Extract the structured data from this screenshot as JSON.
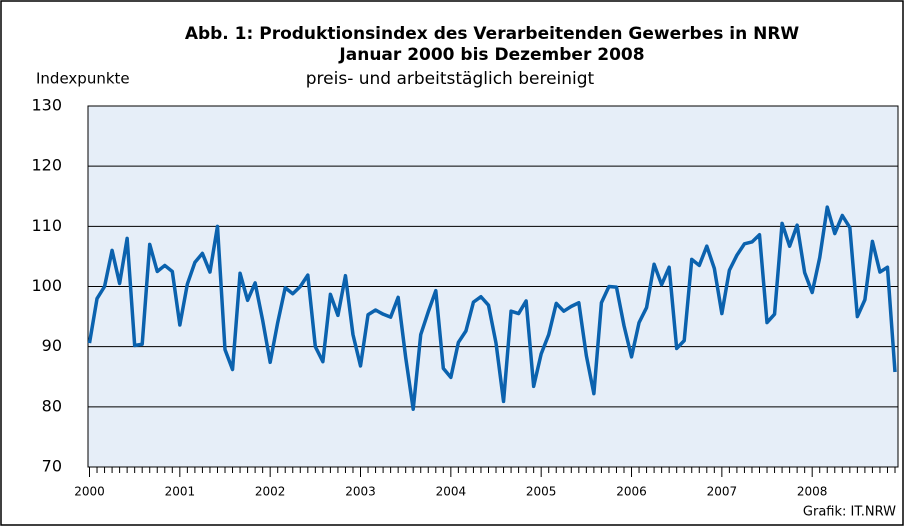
{
  "chart_data": {
    "type": "line",
    "title": [
      "Abb. 1: Produktionsindex des Verarbeitenden Gewerbes in NRW",
      "Januar 2000 bis Dezember 2008"
    ],
    "subtitle": "preis- und arbeitstäglich bereinigt",
    "ylabel": "Indexpunkte",
    "source": "Grafik: IT.NRW",
    "categories": [
      "2000",
      null,
      null,
      null,
      null,
      null,
      null,
      null,
      null,
      null,
      null,
      null,
      "2001",
      null,
      null,
      null,
      null,
      null,
      null,
      null,
      null,
      null,
      null,
      null,
      "2002",
      null,
      null,
      null,
      null,
      null,
      null,
      null,
      null,
      null,
      null,
      null,
      "2003",
      null,
      null,
      null,
      null,
      null,
      null,
      null,
      null,
      null,
      null,
      null,
      "2004",
      null,
      null,
      null,
      null,
      null,
      null,
      null,
      null,
      null,
      null,
      null,
      "2005",
      null,
      null,
      null,
      null,
      null,
      null,
      null,
      null,
      null,
      null,
      null,
      "2006",
      null,
      null,
      null,
      null,
      null,
      null,
      null,
      null,
      null,
      null,
      null,
      "2007",
      null,
      null,
      null,
      null,
      null,
      null,
      null,
      null,
      null,
      null,
      null,
      "2008",
      null,
      null,
      null,
      null,
      null,
      null,
      null,
      null,
      null,
      null,
      null
    ],
    "series": [
      {
        "color": "#0b62ae",
        "values": [
          90.6,
          98,
          100,
          106,
          100.5,
          108,
          90.2,
          90.4,
          107,
          102.5,
          103.5,
          102.5,
          93.6,
          100.4,
          104,
          105.5,
          102.4,
          110,
          89.5,
          86.2,
          102.2,
          97.7,
          100.6,
          94.4,
          87.4,
          94,
          99.8,
          98.8,
          100,
          101.9,
          90,
          87.5,
          98.7,
          95.2,
          101.8,
          92,
          86.8,
          95.3,
          96.1,
          95.4,
          94.9,
          98.2,
          88.2,
          79.6,
          92,
          95.8,
          99.3,
          86.4,
          84.9,
          90.7,
          92.6,
          97.4,
          98.3,
          96.9,
          90.6,
          80.9,
          95.9,
          95.5,
          97.6,
          83.4,
          88.8,
          92,
          97.2,
          95.9,
          96.7,
          97.3,
          88.5,
          82.2,
          97.3,
          100,
          99.9,
          93.5,
          88.3,
          94,
          96.5,
          103.7,
          100.3,
          103.2,
          89.7,
          91,
          104.5,
          103.5,
          106.7,
          103,
          95.5,
          102.7,
          105.2,
          107.1,
          107.4,
          108.6,
          94,
          95.4,
          110.5,
          106.7,
          110.2,
          102.3,
          99,
          104.8,
          113.2,
          108.8,
          111.8,
          109.8,
          95,
          97.8,
          107.5,
          102.4,
          103.2,
          85.8
        ]
      }
    ],
    "ylim": [
      70,
      130
    ],
    "yticks": [
      70,
      80,
      90,
      100,
      110,
      120,
      130
    ],
    "grid": true,
    "plot_background": "#e6eef8"
  }
}
